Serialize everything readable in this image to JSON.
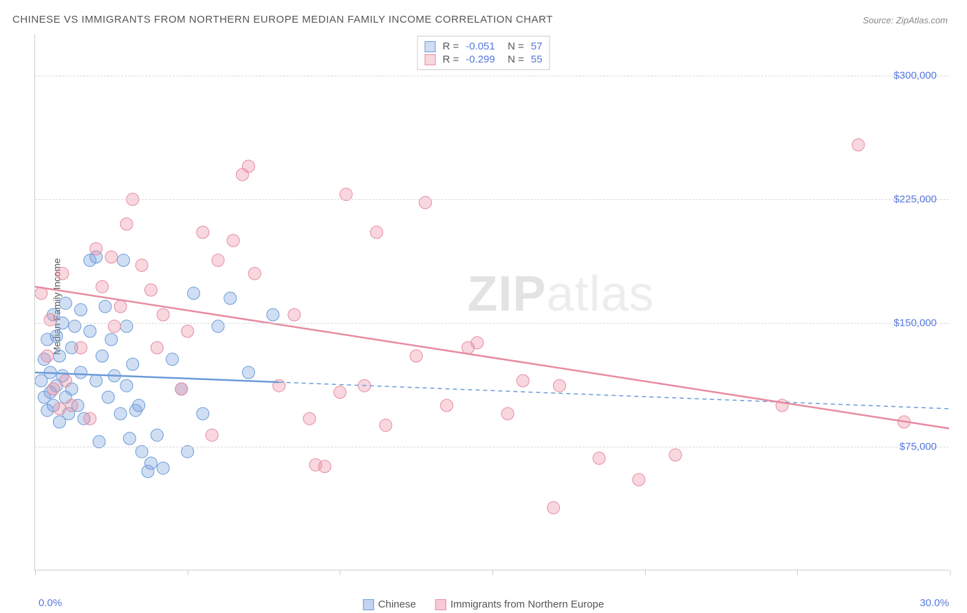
{
  "title": "CHINESE VS IMMIGRANTS FROM NORTHERN EUROPE MEDIAN FAMILY INCOME CORRELATION CHART",
  "source": "Source: ZipAtlas.com",
  "y_axis_label": "Median Family Income",
  "watermark_bold": "ZIP",
  "watermark_light": "atlas",
  "chart": {
    "type": "scatter",
    "xlim": [
      0,
      30
    ],
    "ylim": [
      0,
      325000
    ],
    "x_ticks": [
      0,
      5,
      10,
      15,
      20,
      25,
      30
    ],
    "x_tick_left": "0.0%",
    "x_tick_right": "30.0%",
    "y_gridlines": [
      75000,
      150000,
      225000,
      300000
    ],
    "y_tick_labels": [
      "$75,000",
      "$150,000",
      "$225,000",
      "$300,000"
    ],
    "background_color": "#ffffff",
    "grid_color": "#d8d8d8",
    "axis_color": "#cccccc",
    "label_color": "#555555",
    "tick_label_color": "#5577dd",
    "marker_radius": 9,
    "series": [
      {
        "name": "Chinese",
        "fill": "rgba(120,160,220,0.35)",
        "stroke": "#6a9ad8",
        "R": "-0.051",
        "N": "57",
        "trend": {
          "y_at_x0": 120000,
          "y_at_x30": 98000,
          "solid_until_x": 8
        },
        "points": [
          [
            0.2,
            115000
          ],
          [
            0.3,
            128000
          ],
          [
            0.3,
            105000
          ],
          [
            0.4,
            140000
          ],
          [
            0.4,
            97000
          ],
          [
            0.5,
            120000
          ],
          [
            0.5,
            108000
          ],
          [
            0.6,
            155000
          ],
          [
            0.6,
            100000
          ],
          [
            0.7,
            142000
          ],
          [
            0.7,
            112000
          ],
          [
            0.8,
            90000
          ],
          [
            0.8,
            130000
          ],
          [
            0.9,
            150000
          ],
          [
            0.9,
            118000
          ],
          [
            1.0,
            105000
          ],
          [
            1.0,
            162000
          ],
          [
            1.1,
            95000
          ],
          [
            1.2,
            135000
          ],
          [
            1.2,
            110000
          ],
          [
            1.3,
            148000
          ],
          [
            1.4,
            100000
          ],
          [
            1.5,
            158000
          ],
          [
            1.5,
            120000
          ],
          [
            1.6,
            92000
          ],
          [
            1.8,
            145000
          ],
          [
            1.8,
            188000
          ],
          [
            2.0,
            190000
          ],
          [
            2.0,
            115000
          ],
          [
            2.1,
            78000
          ],
          [
            2.2,
            130000
          ],
          [
            2.3,
            160000
          ],
          [
            2.4,
            105000
          ],
          [
            2.5,
            140000
          ],
          [
            2.6,
            118000
          ],
          [
            2.8,
            95000
          ],
          [
            2.9,
            188000
          ],
          [
            3.0,
            148000
          ],
          [
            3.0,
            112000
          ],
          [
            3.1,
            80000
          ],
          [
            3.2,
            125000
          ],
          [
            3.3,
            97000
          ],
          [
            3.4,
            100000
          ],
          [
            3.5,
            72000
          ],
          [
            3.7,
            60000
          ],
          [
            3.8,
            65000
          ],
          [
            4.0,
            82000
          ],
          [
            4.2,
            62000
          ],
          [
            4.5,
            128000
          ],
          [
            4.8,
            110000
          ],
          [
            5.0,
            72000
          ],
          [
            5.2,
            168000
          ],
          [
            5.5,
            95000
          ],
          [
            6.0,
            148000
          ],
          [
            6.4,
            165000
          ],
          [
            7.0,
            120000
          ],
          [
            7.8,
            155000
          ]
        ]
      },
      {
        "name": "Immigrants from Northern Europe",
        "fill": "rgba(235,140,160,0.35)",
        "stroke": "#e88aa0",
        "R": "-0.299",
        "N": "55",
        "trend": {
          "y_at_x0": 172000,
          "y_at_x30": 86000,
          "solid_until_x": 30
        },
        "points": [
          [
            0.2,
            168000
          ],
          [
            0.4,
            130000
          ],
          [
            0.5,
            152000
          ],
          [
            0.6,
            110000
          ],
          [
            0.8,
            98000
          ],
          [
            0.9,
            180000
          ],
          [
            1.0,
            115000
          ],
          [
            1.2,
            100000
          ],
          [
            1.5,
            135000
          ],
          [
            1.8,
            92000
          ],
          [
            2.0,
            195000
          ],
          [
            2.2,
            172000
          ],
          [
            2.5,
            190000
          ],
          [
            2.6,
            148000
          ],
          [
            2.8,
            160000
          ],
          [
            3.0,
            210000
          ],
          [
            3.2,
            225000
          ],
          [
            3.5,
            185000
          ],
          [
            3.8,
            170000
          ],
          [
            4.0,
            135000
          ],
          [
            4.2,
            155000
          ],
          [
            4.8,
            110000
          ],
          [
            5.0,
            145000
          ],
          [
            5.5,
            205000
          ],
          [
            5.8,
            82000
          ],
          [
            6.0,
            188000
          ],
          [
            6.5,
            200000
          ],
          [
            6.8,
            240000
          ],
          [
            7.0,
            245000
          ],
          [
            7.2,
            180000
          ],
          [
            8.0,
            112000
          ],
          [
            8.5,
            155000
          ],
          [
            9.0,
            92000
          ],
          [
            9.2,
            64000
          ],
          [
            9.5,
            63000
          ],
          [
            10.0,
            108000
          ],
          [
            10.2,
            228000
          ],
          [
            10.8,
            112000
          ],
          [
            11.2,
            205000
          ],
          [
            11.5,
            88000
          ],
          [
            12.5,
            130000
          ],
          [
            12.8,
            223000
          ],
          [
            13.5,
            100000
          ],
          [
            14.2,
            135000
          ],
          [
            14.5,
            138000
          ],
          [
            15.5,
            95000
          ],
          [
            16.0,
            115000
          ],
          [
            17.0,
            38000
          ],
          [
            17.2,
            112000
          ],
          [
            18.5,
            68000
          ],
          [
            19.8,
            55000
          ],
          [
            21.0,
            70000
          ],
          [
            24.5,
            100000
          ],
          [
            27.0,
            258000
          ],
          [
            28.5,
            90000
          ]
        ]
      }
    ],
    "legend_bottom": [
      {
        "label": "Chinese",
        "fill": "rgba(120,160,220,0.45)",
        "stroke": "#6a9ad8"
      },
      {
        "label": "Immigrants from Northern Europe",
        "fill": "rgba(235,140,160,0.45)",
        "stroke": "#e88aa0"
      }
    ]
  }
}
